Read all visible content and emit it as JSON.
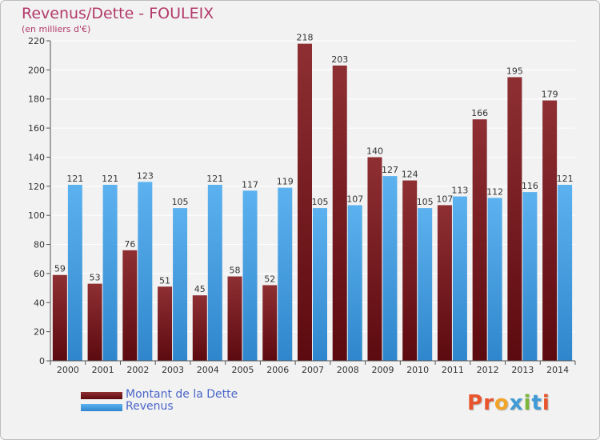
{
  "colors": {
    "debt": "#7a1a1f",
    "revenue": "#4aa3e6",
    "title": "#b23a6a",
    "legend_text": "#4a66c8"
  },
  "chart_data": {
    "type": "bar",
    "title": "Revenus/Dette - FOULEIX",
    "subtitle": "(en milliers d'€)",
    "categories": [
      "2000",
      "2001",
      "2002",
      "2003",
      "2004",
      "2005",
      "2006",
      "2007",
      "2008",
      "2009",
      "2010",
      "2011",
      "2012",
      "2013",
      "2014"
    ],
    "series": [
      {
        "name": "Montant de la Dette",
        "values": [
          59,
          53,
          76,
          51,
          45,
          58,
          52,
          218,
          203,
          140,
          124,
          107,
          166,
          195,
          179
        ]
      },
      {
        "name": "Revenus",
        "values": [
          121,
          121,
          123,
          105,
          121,
          117,
          119,
          105,
          107,
          127,
          105,
          113,
          112,
          116,
          121
        ]
      }
    ],
    "ylim": [
      0,
      220
    ],
    "yticks": [
      0,
      20,
      40,
      60,
      80,
      100,
      120,
      140,
      160,
      180,
      200,
      220
    ],
    "grid": true,
    "legend_position": "bottom-left"
  },
  "logo": {
    "text": "Proxiti"
  }
}
